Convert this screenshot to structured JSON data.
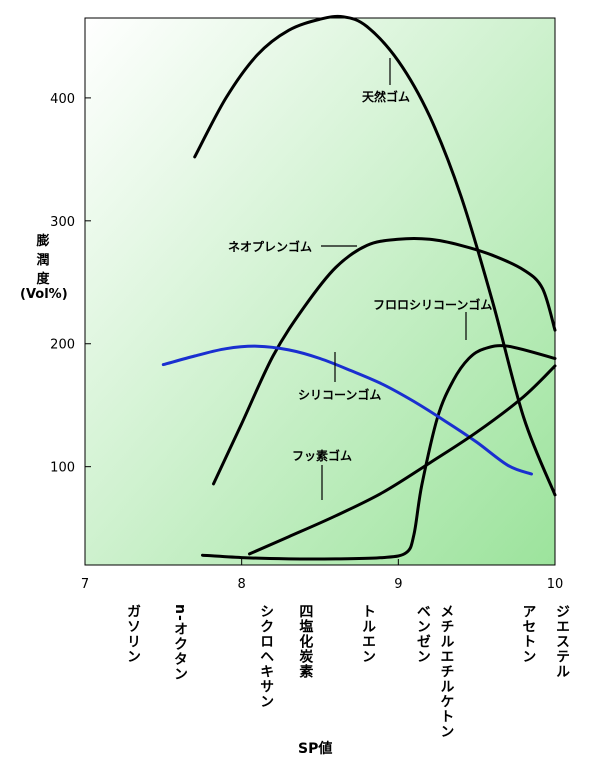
{
  "chart_data": {
    "type": "line",
    "xlabel": "SP値",
    "ylabel": [
      "膨",
      "潤",
      "度",
      "(Vol%)"
    ],
    "xlim": [
      7,
      10
    ],
    "ylim": [
      20,
      465
    ],
    "x_ticks": [
      "7",
      "8",
      "9",
      "10"
    ],
    "y_ticks": [
      "100",
      "200",
      "300",
      "400"
    ],
    "grid": false,
    "background": "light green gradient",
    "series": [
      {
        "name": "天然ゴム",
        "color": "#000000",
        "x": [
          7.7,
          7.9,
          8.1,
          8.3,
          8.5,
          8.65,
          8.8,
          9.0,
          9.2,
          9.4,
          9.6,
          9.8,
          10.0
        ],
        "y": [
          352,
          400,
          435,
          455,
          464,
          466,
          458,
          430,
          385,
          320,
          235,
          140,
          77
        ]
      },
      {
        "name": "ネオプレンゴム",
        "color": "#000000",
        "x": [
          7.82,
          8.0,
          8.2,
          8.4,
          8.6,
          8.8,
          9.0,
          9.2,
          9.4,
          9.6,
          9.8,
          9.92,
          10.0
        ],
        "y": [
          86,
          135,
          190,
          230,
          262,
          280,
          285,
          285,
          280,
          272,
          260,
          245,
          211
        ]
      },
      {
        "name": "フロロシリコーンゴム",
        "color": "#000000",
        "x": [
          7.75,
          8.0,
          8.3,
          8.6,
          8.9,
          9.05,
          9.1,
          9.15,
          9.25,
          9.35,
          9.45,
          9.55,
          9.7,
          10.0
        ],
        "y": [
          28,
          26,
          25,
          25,
          26,
          30,
          45,
          85,
          140,
          170,
          188,
          196,
          198,
          188
        ]
      },
      {
        "name": "シリコーンゴム",
        "color": "#1a2fd0",
        "x": [
          7.5,
          7.7,
          7.9,
          8.1,
          8.3,
          8.5,
          8.7,
          8.9,
          9.1,
          9.3,
          9.5,
          9.7,
          9.85
        ],
        "y": [
          183,
          190,
          196,
          198,
          195,
          188,
          178,
          167,
          153,
          137,
          120,
          101,
          94
        ]
      },
      {
        "name": "フッ素ゴム",
        "color": "#000000",
        "x": [
          8.05,
          8.3,
          8.6,
          8.9,
          9.2,
          9.5,
          9.8,
          10.0
        ],
        "y": [
          29,
          43,
          60,
          79,
          103,
          128,
          157,
          182
        ]
      }
    ],
    "series_labels": [
      "天然ゴム",
      "ネオプレンゴム",
      "フロロシリコーンゴム",
      "シリコーンゴム",
      "フッ素ゴム"
    ],
    "solvents": [
      {
        "name": "ガソリン",
        "sp": 7.3
      },
      {
        "name": "n-オクタン",
        "sp": 7.6
      },
      {
        "name": "シクロヘキサン",
        "sp": 8.15
      },
      {
        "name": "四塩化炭素",
        "sp": 8.4
      },
      {
        "name": "トルエン",
        "sp": 8.8
      },
      {
        "name": "ベンゼン",
        "sp": 9.15
      },
      {
        "name": "メチルエチルケトン",
        "sp": 9.3
      },
      {
        "name": "アセトン",
        "sp": 9.9
      },
      {
        "name": "ジエステル",
        "sp": 10.0
      }
    ]
  }
}
